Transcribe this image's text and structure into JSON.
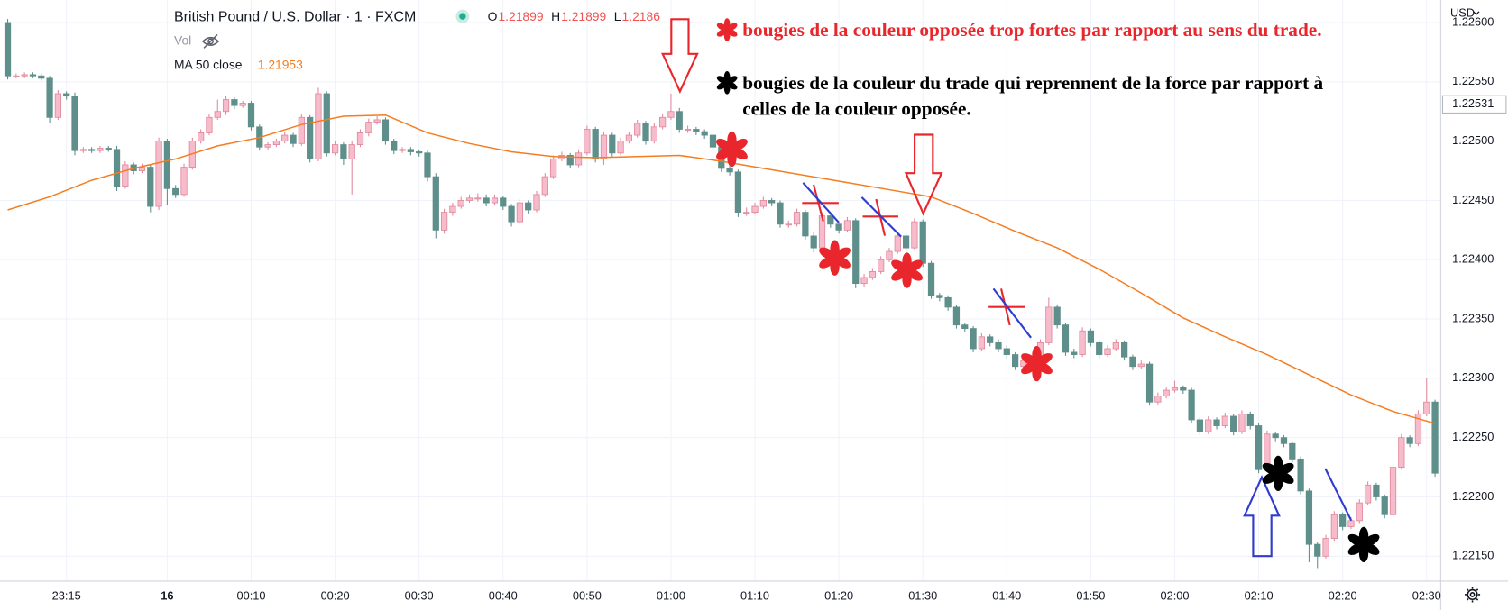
{
  "header": {
    "symbol": "British Pound / U.S. Dollar · 1 · FXCM",
    "ohlc": [
      {
        "label": "O",
        "value": "1.21899"
      },
      {
        "label": "H",
        "value": "1.21899"
      },
      {
        "label": "L",
        "value": "1.2186"
      }
    ],
    "volume": "Vol",
    "ma_value": "1.21953"
  },
  "annotations": {
    "red_note": "bougies de la couleur opposée trop fortes par rapport au sens du trade.",
    "black_note": [
      "bougies de la couleur du trade qui reprennent de la force par rapport à",
      "celles de la couleur opposée."
    ]
  },
  "chart_data": {
    "type": "candlestick",
    "currency": "USD",
    "up_color": "#f7bccb",
    "up_border": "#e1899d",
    "down_color": "#5f8f8b",
    "grid": true,
    "ylim": [
      1.22129,
      1.22619
    ],
    "yticks": [
      {
        "value": 1.2215,
        "label": "1.22150"
      },
      {
        "value": 1.222,
        "label": "1.22200"
      },
      {
        "value": 1.2225,
        "label": "1.22250"
      },
      {
        "value": 1.223,
        "label": "1.22300"
      },
      {
        "value": 1.2235,
        "label": "1.22350"
      },
      {
        "value": 1.224,
        "label": "1.22400"
      },
      {
        "value": 1.2245,
        "label": "1.22450"
      },
      {
        "value": 1.225,
        "label": "1.22500"
      },
      {
        "value": 1.2255,
        "label": "1.22550"
      },
      {
        "value": 1.226,
        "label": "1.22600"
      }
    ],
    "xticks": [
      {
        "value": 7,
        "label": "23:15"
      },
      {
        "value": 19,
        "label": "16"
      },
      {
        "value": 29,
        "label": "00:10"
      },
      {
        "value": 39,
        "label": "00:20"
      },
      {
        "value": 49,
        "label": "00:30"
      },
      {
        "value": 59,
        "label": "00:40"
      },
      {
        "value": 69,
        "label": "00:50"
      },
      {
        "value": 79,
        "label": "01:00"
      },
      {
        "value": 89,
        "label": "01:10"
      },
      {
        "value": 99,
        "label": "01:20"
      },
      {
        "value": 109,
        "label": "01:30"
      },
      {
        "value": 119,
        "label": "01:40"
      },
      {
        "value": 129,
        "label": "01:50"
      },
      {
        "value": 139,
        "label": "02:00"
      },
      {
        "value": 149,
        "label": "02:10"
      },
      {
        "value": 159,
        "label": "02:20"
      },
      {
        "value": 169,
        "label": "02:30"
      }
    ],
    "price_label": {
      "value": 1.22531,
      "label": "1.22531"
    },
    "series": [
      {
        "name": "MA 50 close",
        "color": "#f57c1f",
        "x": [
          0,
          5,
          10,
          15,
          20,
          25,
          30,
          35,
          40,
          45,
          50,
          55,
          60,
          65,
          70,
          75,
          80,
          85,
          90,
          95,
          100,
          105,
          110,
          115,
          120,
          125,
          130,
          135,
          140,
          145,
          150,
          155,
          160,
          165,
          170
        ],
        "values": [
          1.22442,
          1.22453,
          1.22467,
          1.22477,
          1.22485,
          1.22496,
          1.22503,
          1.22514,
          1.22521,
          1.22522,
          1.22507,
          1.22498,
          1.22491,
          1.22487,
          1.22486,
          1.22487,
          1.22488,
          1.22483,
          1.22477,
          1.22471,
          1.22465,
          1.22459,
          1.22453,
          1.22439,
          1.22424,
          1.2241,
          1.22392,
          1.22372,
          1.22351,
          1.22335,
          1.2232,
          1.22303,
          1.22286,
          1.22272,
          1.22262
        ]
      }
    ],
    "candles": [
      [
        1.226,
        1.22603,
        1.22552,
        1.22555
      ],
      [
        1.22555,
        1.22557,
        1.22553,
        1.22555
      ],
      [
        1.22555,
        1.22558,
        1.22553,
        1.22556
      ],
      [
        1.22556,
        1.22558,
        1.22553,
        1.22555
      ],
      [
        1.22555,
        1.22557,
        1.22551,
        1.22553
      ],
      [
        1.22553,
        1.22555,
        1.22515,
        1.2252
      ],
      [
        1.2252,
        1.22543,
        1.22518,
        1.2254
      ],
      [
        1.2254,
        1.22542,
        1.22535,
        1.22538
      ],
      [
        1.22538,
        1.22541,
        1.22488,
        1.22492
      ],
      [
        1.22492,
        1.22495,
        1.2249,
        1.22493
      ],
      [
        1.22493,
        1.22495,
        1.2249,
        1.22492
      ],
      [
        1.22492,
        1.22496,
        1.2249,
        1.22494
      ],
      [
        1.22494,
        1.22496,
        1.22491,
        1.22493
      ],
      [
        1.22493,
        1.22496,
        1.22458,
        1.22462
      ],
      [
        1.22462,
        1.22483,
        1.2246,
        1.2248
      ],
      [
        1.2248,
        1.22482,
        1.22472,
        1.22475
      ],
      [
        1.22475,
        1.22481,
        1.22473,
        1.22478
      ],
      [
        1.22478,
        1.2248,
        1.2244,
        1.22445
      ],
      [
        1.22445,
        1.22503,
        1.22442,
        1.225
      ],
      [
        1.225,
        1.22502,
        1.22446,
        1.2246
      ],
      [
        1.2246,
        1.22463,
        1.22452,
        1.22455
      ],
      [
        1.22455,
        1.22481,
        1.22453,
        1.22478
      ],
      [
        1.22478,
        1.22503,
        1.22476,
        1.225
      ],
      [
        1.225,
        1.2251,
        1.22498,
        1.22507
      ],
      [
        1.22507,
        1.22523,
        1.22505,
        1.2252
      ],
      [
        1.2252,
        1.22535,
        1.22518,
        1.22525
      ],
      [
        1.22525,
        1.22538,
        1.22522,
        1.22535
      ],
      [
        1.22535,
        1.22537,
        1.22527,
        1.2253
      ],
      [
        1.2253,
        1.22534,
        1.22528,
        1.22532
      ],
      [
        1.22532,
        1.22534,
        1.22509,
        1.22512
      ],
      [
        1.22512,
        1.22514,
        1.22492,
        1.22495
      ],
      [
        1.22495,
        1.22499,
        1.22493,
        1.22497
      ],
      [
        1.22497,
        1.22502,
        1.22495,
        1.225
      ],
      [
        1.225,
        1.22508,
        1.22498,
        1.22505
      ],
      [
        1.22505,
        1.22507,
        1.22495,
        1.22498
      ],
      [
        1.22498,
        1.22523,
        1.22496,
        1.2252
      ],
      [
        1.2252,
        1.22522,
        1.22482,
        1.22485
      ],
      [
        1.22485,
        1.22545,
        1.22483,
        1.2254
      ],
      [
        1.2254,
        1.22542,
        1.22487,
        1.2249
      ],
      [
        1.2249,
        1.225,
        1.22488,
        1.22497
      ],
      [
        1.22497,
        1.22499,
        1.2248,
        1.22485
      ],
      [
        1.22485,
        1.225,
        1.22455,
        1.22497
      ],
      [
        1.22497,
        1.2251,
        1.22495,
        1.22507
      ],
      [
        1.22507,
        1.22519,
        1.22504,
        1.22516
      ],
      [
        1.22516,
        1.22521,
        1.22514,
        1.22518
      ],
      [
        1.22518,
        1.2252,
        1.22497,
        1.225
      ],
      [
        1.225,
        1.22502,
        1.22489,
        1.22492
      ],
      [
        1.22492,
        1.22495,
        1.2249,
        1.22493
      ],
      [
        1.22493,
        1.22495,
        1.22488,
        1.22491
      ],
      [
        1.22491,
        1.22493,
        1.22487,
        1.2249
      ],
      [
        1.2249,
        1.22492,
        1.22466,
        1.2247
      ],
      [
        1.2247,
        1.22473,
        1.22418,
        1.22425
      ],
      [
        1.22425,
        1.22443,
        1.22422,
        1.2244
      ],
      [
        1.2244,
        1.22448,
        1.22437,
        1.22445
      ],
      [
        1.22445,
        1.22453,
        1.22443,
        1.2245
      ],
      [
        1.2245,
        1.22455,
        1.22448,
        1.22452
      ],
      [
        1.22452,
        1.22456,
        1.22449,
        1.22452
      ],
      [
        1.22452,
        1.22455,
        1.22445,
        1.22448
      ],
      [
        1.22448,
        1.22455,
        1.22446,
        1.22452
      ],
      [
        1.22452,
        1.22454,
        1.22442,
        1.22445
      ],
      [
        1.22445,
        1.22447,
        1.22428,
        1.22432
      ],
      [
        1.22432,
        1.22451,
        1.2243,
        1.22448
      ],
      [
        1.22448,
        1.2245,
        1.22439,
        1.22442
      ],
      [
        1.22442,
        1.22458,
        1.2244,
        1.22455
      ],
      [
        1.22455,
        1.22473,
        1.22453,
        1.2247
      ],
      [
        1.2247,
        1.22488,
        1.22468,
        1.22485
      ],
      [
        1.22485,
        1.22491,
        1.22483,
        1.22488
      ],
      [
        1.22488,
        1.2249,
        1.22477,
        1.2248
      ],
      [
        1.2248,
        1.22493,
        1.22478,
        1.2249
      ],
      [
        1.2249,
        1.22513,
        1.22488,
        1.2251
      ],
      [
        1.2251,
        1.22512,
        1.22482,
        1.22485
      ],
      [
        1.22485,
        1.22508,
        1.2248,
        1.22505
      ],
      [
        1.22505,
        1.22507,
        1.22487,
        1.2249
      ],
      [
        1.2249,
        1.22503,
        1.22488,
        1.225
      ],
      [
        1.225,
        1.22508,
        1.22498,
        1.22505
      ],
      [
        1.22505,
        1.22518,
        1.22503,
        1.22515
      ],
      [
        1.22515,
        1.22517,
        1.22497,
        1.225
      ],
      [
        1.225,
        1.22515,
        1.22498,
        1.22512
      ],
      [
        1.22512,
        1.22523,
        1.2251,
        1.2252
      ],
      [
        1.2252,
        1.2254,
        1.22518,
        1.22525
      ],
      [
        1.22525,
        1.22528,
        1.22507,
        1.2251
      ],
      [
        1.2251,
        1.22513,
        1.22507,
        1.2251
      ],
      [
        1.2251,
        1.22512,
        1.22505,
        1.22508
      ],
      [
        1.22508,
        1.2251,
        1.22502,
        1.22505
      ],
      [
        1.22505,
        1.22507,
        1.22492,
        1.22495
      ],
      [
        1.22495,
        1.22498,
        1.22474,
        1.22477
      ],
      [
        1.22477,
        1.2248,
        1.22471,
        1.22474
      ],
      [
        1.22474,
        1.22476,
        1.22436,
        1.2244
      ],
      [
        1.2244,
        1.22444,
        1.22437,
        1.2244
      ],
      [
        1.2244,
        1.22448,
        1.22438,
        1.22445
      ],
      [
        1.22445,
        1.22453,
        1.22443,
        1.2245
      ],
      [
        1.2245,
        1.22452,
        1.22445,
        1.22448
      ],
      [
        1.22448,
        1.2245,
        1.22427,
        1.2243
      ],
      [
        1.2243,
        1.22433,
        1.22427,
        1.2243
      ],
      [
        1.2243,
        1.22443,
        1.22428,
        1.2244
      ],
      [
        1.2244,
        1.22442,
        1.22417,
        1.2242
      ],
      [
        1.2242,
        1.22423,
        1.22406,
        1.2241
      ],
      [
        1.2241,
        1.2244,
        1.22408,
        1.22437
      ],
      [
        1.22437,
        1.22439,
        1.22427,
        1.2243
      ],
      [
        1.2243,
        1.22432,
        1.22422,
        1.22425
      ],
      [
        1.22425,
        1.22436,
        1.22423,
        1.22433
      ],
      [
        1.22433,
        1.22435,
        1.22376,
        1.2238
      ],
      [
        1.2238,
        1.22388,
        1.22377,
        1.22385
      ],
      [
        1.22385,
        1.22393,
        1.22383,
        1.2239
      ],
      [
        1.2239,
        1.22403,
        1.22388,
        1.224
      ],
      [
        1.224,
        1.2241,
        1.22398,
        1.22407
      ],
      [
        1.22407,
        1.22423,
        1.22405,
        1.2242
      ],
      [
        1.2242,
        1.22422,
        1.22407,
        1.2241
      ],
      [
        1.2241,
        1.22435,
        1.22408,
        1.22432
      ],
      [
        1.22432,
        1.22434,
        1.22394,
        1.22397
      ],
      [
        1.22397,
        1.22399,
        1.22367,
        1.2237
      ],
      [
        1.2237,
        1.22372,
        1.22365,
        1.22368
      ],
      [
        1.22368,
        1.2237,
        1.22357,
        1.2236
      ],
      [
        1.2236,
        1.22362,
        1.22342,
        1.22345
      ],
      [
        1.22345,
        1.22347,
        1.22339,
        1.22342
      ],
      [
        1.22342,
        1.22344,
        1.22322,
        1.22325
      ],
      [
        1.22325,
        1.22338,
        1.22323,
        1.22335
      ],
      [
        1.22335,
        1.22337,
        1.22327,
        1.2233
      ],
      [
        1.2233,
        1.22333,
        1.22322,
        1.22325
      ],
      [
        1.22325,
        1.22328,
        1.22317,
        1.2232
      ],
      [
        1.2232,
        1.22322,
        1.22307,
        1.2231
      ],
      [
        1.2231,
        1.22318,
        1.22308,
        1.22315
      ],
      [
        1.22315,
        1.22317,
        1.2231,
        1.22313
      ],
      [
        1.22313,
        1.22333,
        1.22311,
        1.2233
      ],
      [
        1.2233,
        1.22368,
        1.22328,
        1.2236
      ],
      [
        1.2236,
        1.22362,
        1.22342,
        1.22345
      ],
      [
        1.22345,
        1.22347,
        1.22319,
        1.22322
      ],
      [
        1.22322,
        1.22325,
        1.22317,
        1.2232
      ],
      [
        1.2232,
        1.22343,
        1.22318,
        1.2234
      ],
      [
        1.2234,
        1.22342,
        1.22327,
        1.2233
      ],
      [
        1.2233,
        1.22332,
        1.22317,
        1.2232
      ],
      [
        1.2232,
        1.22328,
        1.22318,
        1.22325
      ],
      [
        1.22325,
        1.22333,
        1.22323,
        1.2233
      ],
      [
        1.2233,
        1.22332,
        1.22315,
        1.22318
      ],
      [
        1.22318,
        1.2232,
        1.22307,
        1.2231
      ],
      [
        1.2231,
        1.22315,
        1.22308,
        1.22312
      ],
      [
        1.22312,
        1.22314,
        1.22277,
        1.2228
      ],
      [
        1.2228,
        1.22288,
        1.22278,
        1.22285
      ],
      [
        1.22285,
        1.22293,
        1.22283,
        1.2229
      ],
      [
        1.2229,
        1.22298,
        1.22288,
        1.22292
      ],
      [
        1.22292,
        1.22294,
        1.22287,
        1.2229
      ],
      [
        1.2229,
        1.22292,
        1.22262,
        1.22265
      ],
      [
        1.22265,
        1.22267,
        1.22252,
        1.22255
      ],
      [
        1.22255,
        1.22268,
        1.22253,
        1.22265
      ],
      [
        1.22265,
        1.22267,
        1.22257,
        1.2226
      ],
      [
        1.2226,
        1.22271,
        1.22258,
        1.22268
      ],
      [
        1.22268,
        1.2227,
        1.22252,
        1.22255
      ],
      [
        1.22255,
        1.22273,
        1.22253,
        1.2227
      ],
      [
        1.2227,
        1.22272,
        1.22257,
        1.2226
      ],
      [
        1.2226,
        1.22262,
        1.2222,
        1.22223
      ],
      [
        1.22223,
        1.22256,
        1.22221,
        1.22253
      ],
      [
        1.22253,
        1.22255,
        1.22247,
        1.2225
      ],
      [
        1.2225,
        1.22252,
        1.22242,
        1.22245
      ],
      [
        1.22245,
        1.22247,
        1.22229,
        1.22232
      ],
      [
        1.22232,
        1.22234,
        1.22202,
        1.22205
      ],
      [
        1.22205,
        1.22207,
        1.22145,
        1.2216
      ],
      [
        1.2216,
        1.22162,
        1.2214,
        1.2215
      ],
      [
        1.2215,
        1.22168,
        1.22148,
        1.22165
      ],
      [
        1.22165,
        1.22188,
        1.22163,
        1.22185
      ],
      [
        1.22185,
        1.22187,
        1.22172,
        1.22175
      ],
      [
        1.22175,
        1.22183,
        1.22173,
        1.2218
      ],
      [
        1.2218,
        1.22198,
        1.22178,
        1.22195
      ],
      [
        1.22195,
        1.22213,
        1.22193,
        1.2221
      ],
      [
        1.2221,
        1.22212,
        1.22197,
        1.222
      ],
      [
        1.222,
        1.22202,
        1.22182,
        1.22185
      ],
      [
        1.22185,
        1.22228,
        1.22183,
        1.22225
      ],
      [
        1.22225,
        1.22253,
        1.22223,
        1.2225
      ],
      [
        1.2225,
        1.22252,
        1.22242,
        1.22245
      ],
      [
        1.22245,
        1.22273,
        1.22243,
        1.2227
      ],
      [
        1.2227,
        1.223,
        1.22268,
        1.2228
      ],
      [
        1.2228,
        1.22282,
        1.22217,
        1.2222
      ]
    ]
  }
}
